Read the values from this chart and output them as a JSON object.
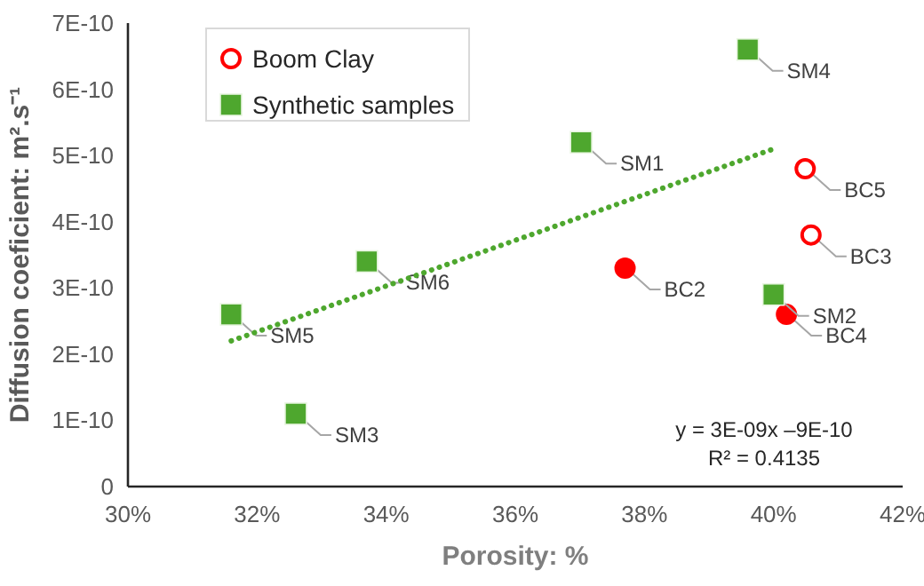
{
  "chart_data": {
    "type": "scatter",
    "xlabel": "Porosity: %",
    "ylabel": "Diffusion coeficient: m².s⁻¹",
    "xlim": [
      30,
      42
    ],
    "xticks": [
      {
        "value": 30,
        "label": "30%"
      },
      {
        "value": 32,
        "label": "32%"
      },
      {
        "value": 34,
        "label": "34%"
      },
      {
        "value": 36,
        "label": "36%"
      },
      {
        "value": 38,
        "label": "38%"
      },
      {
        "value": 40,
        "label": "40%"
      },
      {
        "value": 42,
        "label": "42%"
      }
    ],
    "ylim": [
      0,
      7e-10
    ],
    "yticks": [
      0,
      {
        "value": 1e-10,
        "label": "1E-10"
      },
      {
        "value": 2e-10,
        "label": "2E-10"
      },
      {
        "value": 3e-10,
        "label": "3E-10"
      },
      {
        "value": 4e-10,
        "label": "4E-10"
      },
      {
        "value": 5e-10,
        "label": "5E-10"
      },
      {
        "value": 6e-10,
        "label": "6E-10"
      },
      {
        "value": 7e-10,
        "label": "7E-10"
      }
    ],
    "grid": false,
    "legend": "top left",
    "series": [
      {
        "name": "Boom Clay",
        "color": "#ff0000",
        "marker": "circle",
        "x": [
          40.49,
          40.58
        ],
        "values": [
          4.8e-10,
          3.8e-10
        ],
        "value_labels": [
          "BC5",
          "BC3"
        ]
      },
      {
        "color": "#ff0000",
        "marker": "circle",
        "x": [
          37.7,
          40.2
        ],
        "values": [
          3.3e-10,
          2.6e-10
        ],
        "value_labels": [
          "BC2",
          "BC4"
        ]
      },
      {
        "name": "Synthetic samples",
        "color": "#4ea72e",
        "marker": "square",
        "x": [
          37.02,
          40.0,
          32.6,
          39.6,
          31.6,
          33.7
        ],
        "values": [
          5.2e-10,
          2.9e-10,
          1.1e-10,
          6.6e-10,
          2.6e-10,
          3.4e-10
        ],
        "value_labels": [
          "SM1",
          "SM2",
          "SM3",
          "SM4",
          "SM5",
          "SM6"
        ]
      },
      {
        "type": "line",
        "color": "#4ea72e",
        "line_style": "dotted",
        "x": [
          31.6,
          40.0
        ],
        "values": [
          2.2e-10,
          5.1e-10
        ]
      }
    ],
    "annotations": [
      "y = 3E-09x –9E-10",
      "R² = 0.4135"
    ]
  }
}
